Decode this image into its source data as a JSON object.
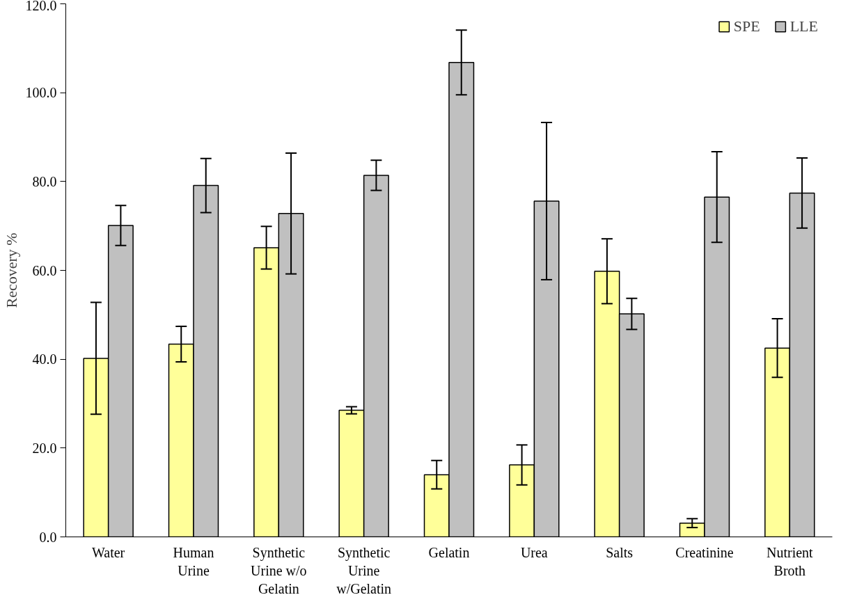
{
  "chart_data": {
    "type": "bar",
    "ylabel": "Recovery %",
    "categories": [
      "Water",
      "Human\nUrine",
      "Synthetic\nUrine w/o\nGelatin",
      "Synthetic\nUrine\nw/Gelatin",
      "Gelatin",
      "Urea",
      "Salts",
      "Creatinine",
      "Nutrient\nBroth"
    ],
    "series": [
      {
        "name": "SPE",
        "color": "#ffff99",
        "values": [
          40.2,
          43.4,
          65.1,
          28.5,
          14.0,
          16.2,
          59.8,
          3.1,
          42.5
        ],
        "errors": [
          12.6,
          4.0,
          4.8,
          0.8,
          3.2,
          4.5,
          7.3,
          1.0,
          6.6
        ]
      },
      {
        "name": "LLE",
        "color": "#c0c0c0",
        "values": [
          70.1,
          79.1,
          72.8,
          81.4,
          106.8,
          75.6,
          50.2,
          76.5,
          77.4
        ],
        "errors": [
          4.5,
          6.1,
          13.6,
          3.4,
          7.3,
          17.7,
          3.5,
          10.2,
          7.9
        ]
      }
    ],
    "ylim": [
      0,
      120
    ],
    "yticks": [
      {
        "value": 0,
        "label": "0.0"
      },
      {
        "value": 20,
        "label": "20.0"
      },
      {
        "value": 40,
        "label": "40.0"
      },
      {
        "value": 60,
        "label": "60.0"
      },
      {
        "value": 80,
        "label": "80.0"
      },
      {
        "value": 100,
        "label": "100.0"
      },
      {
        "value": 120,
        "label": "120.0"
      }
    ],
    "legend": "top right",
    "grid": false
  }
}
